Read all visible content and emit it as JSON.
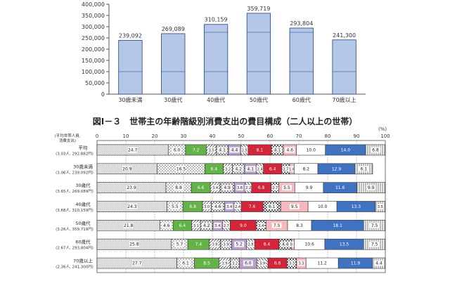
{
  "chart_data": [
    {
      "type": "bar",
      "title": "",
      "xlabel": "",
      "ylabel": "",
      "ylim": [
        0,
        400000
      ],
      "yticks": [
        "0",
        "50,000",
        "100,000",
        "150,000",
        "200,000",
        "250,000",
        "300,000",
        "350,000",
        "400,000"
      ],
      "categories": [
        "30歳未満",
        "30歳代",
        "40歳代",
        "50歳代",
        "60歳代",
        "70歳以上"
      ],
      "values": [
        239092,
        269089,
        310159,
        359719,
        293804,
        241300
      ],
      "value_labels": [
        "239,092",
        "269,089",
        "310,159",
        "359,719",
        "293,804",
        "241,300"
      ],
      "grid": false,
      "colors": {
        "bar_fill": "#b4c7e7",
        "bar_stroke": "#1f3f8f"
      }
    },
    {
      "type": "bar",
      "stacked": true,
      "orientation": "horizontal",
      "title": "図Ⅰ－３　世帯主の年齢階級別消費支出の費目構成（二人以上の世帯）",
      "header_left": "(平均世帯人員,\n消費支出)",
      "unit_label": "(%)",
      "xlim": [
        0,
        100
      ],
      "xticks": [
        "0",
        "10",
        "20",
        "30",
        "40",
        "50",
        "60",
        "70",
        "80",
        "90",
        "100"
      ],
      "grid": true,
      "legend": "none",
      "rows": [
        {
          "label": "平均",
          "sub": "(3.03人, 292,882円)",
          "values": [
            24.7,
            6.0,
            7.2,
            3.5,
            4.1,
            4.4,
            2.5,
            8.1,
            4.1,
            4.6,
            10.0,
            14.0,
            6.8
          ]
        },
        {
          "label": "30歳未満",
          "sub": "(3.06人, 239,092円)",
          "values": [
            20.9,
            16.5,
            6.4,
            3.2,
            4.2,
            4.1,
            2.4,
            6.4,
            2.7,
            1.6,
            8.2,
            12.9,
            6.1
          ]
        },
        {
          "label": "30歳代",
          "sub": "(3.65人, 269,089円)",
          "values": [
            23.9,
            8.8,
            6.6,
            3.4,
            4.9,
            3.8,
            2.2,
            6.8,
            2.7,
            5.5,
            9.9,
            11.6,
            9.9
          ]
        },
        {
          "label": "40歳代",
          "sub": "(3.68人, 310,159円)",
          "values": [
            24.3,
            5.5,
            6.8,
            3.0,
            4.6,
            3.4,
            2.4,
            7.6,
            6.1,
            9.5,
            10.0,
            13.3,
            3.5
          ]
        },
        {
          "label": "50歳代",
          "sub": "(3.26人, 359,719円)",
          "values": [
            21.8,
            4.6,
            6.4,
            3.1,
            4.2,
            3.4,
            2.7,
            9.0,
            3.4,
            7.5,
            8.3,
            18.1,
            7.5
          ]
        },
        {
          "label": "60歳代",
          "sub": "(2.67人, 293,804円)",
          "values": [
            25.8,
            5.7,
            7.4,
            3.9,
            3.9,
            5.2,
            2.8,
            8.4,
            4.4,
            0.9,
            10.6,
            13.5,
            7.5
          ]
        },
        {
          "label": "70歳以上",
          "sub": "(2.36人, 241,300円)",
          "values": [
            27.7,
            6.1,
            8.5,
            3.9,
            3.2,
            6.0,
            3.9,
            6.6,
            3.3,
            3.3,
            11.2,
            11.9,
            4.4
          ]
        }
      ],
      "colors": {
        "green": "#63b346",
        "red": "#d4263a",
        "purple": "#b9a0cc",
        "pink": "#f4b8be",
        "blue": "#3f73c2",
        "stroke": "#333333"
      }
    }
  ]
}
